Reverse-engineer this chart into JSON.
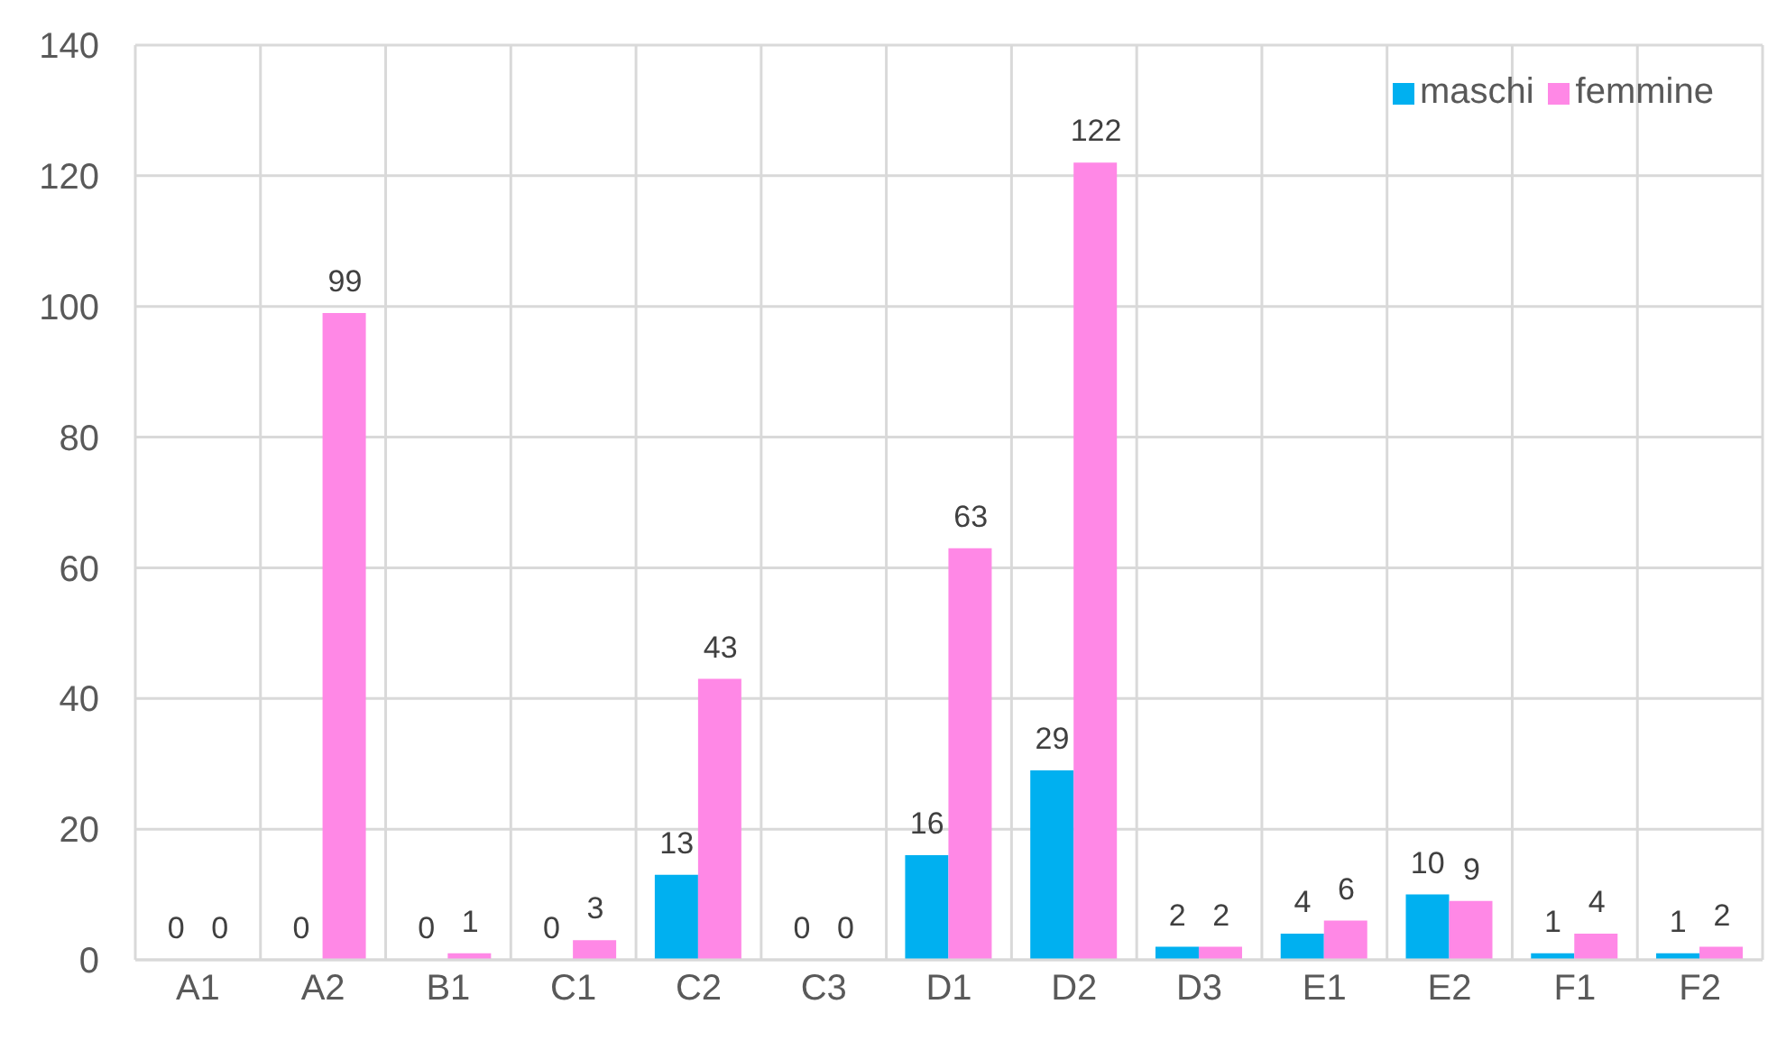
{
  "chart_data": {
    "type": "bar",
    "categories": [
      "A1",
      "A2",
      "B1",
      "C1",
      "C2",
      "C3",
      "D1",
      "D2",
      "D3",
      "E1",
      "E2",
      "F1",
      "F2"
    ],
    "series": [
      {
        "name": "maschi",
        "color": "#00b0f0",
        "values": [
          0,
          0,
          0,
          0,
          13,
          0,
          16,
          29,
          2,
          4,
          10,
          1,
          1
        ]
      },
      {
        "name": "femmine",
        "color": "#ff88e6",
        "values": [
          0,
          99,
          1,
          3,
          43,
          0,
          63,
          122,
          2,
          6,
          9,
          4,
          2
        ]
      }
    ],
    "ylim": [
      0,
      140
    ],
    "yticks": [
      0,
      20,
      40,
      60,
      80,
      100,
      120,
      140
    ],
    "grid": true,
    "legend": "top right",
    "data_labels": true
  }
}
